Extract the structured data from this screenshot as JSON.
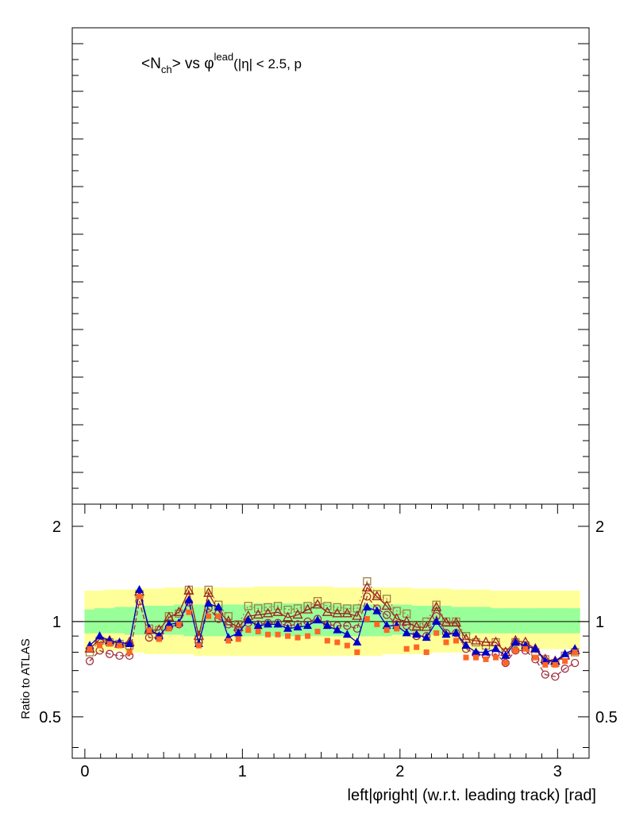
{
  "chart_data": [
    {
      "type": "line",
      "title": "<N_ch> vs φ^lead (|η| < 2.5, p",
      "title_parts": {
        "lt": "<N",
        "sub": "ch",
        "gt": "> vs φ",
        "sup": "lead",
        "rest": "(|η| < 2.5, p"
      },
      "series": []
    },
    {
      "type": "scatter",
      "xlabel": "left|φright| (w.r.t. leading track) [rad]",
      "ylabel": "Ratio to ATLAS",
      "xlim": [
        -0.08,
        3.2
      ],
      "ylim": [
        0.37,
        2.35
      ],
      "x_ticks": [
        "0",
        "1",
        "2",
        "3"
      ],
      "y_ticks": [
        "0.5",
        "1",
        "2"
      ],
      "y_ticks_right": [
        "0.5",
        "1",
        "2"
      ],
      "reference_line": 1,
      "x": [
        0.031,
        0.094,
        0.157,
        0.22,
        0.283,
        0.346,
        0.408,
        0.471,
        0.534,
        0.597,
        0.66,
        0.723,
        0.785,
        0.848,
        0.911,
        0.974,
        1.037,
        1.1,
        1.162,
        1.225,
        1.288,
        1.351,
        1.414,
        1.477,
        1.539,
        1.602,
        1.665,
        1.728,
        1.791,
        1.854,
        1.916,
        1.979,
        2.042,
        2.105,
        2.168,
        2.231,
        2.293,
        2.356,
        2.419,
        2.482,
        2.545,
        2.608,
        2.67,
        2.733,
        2.796,
        2.859,
        2.922,
        2.985,
        3.047,
        3.11
      ],
      "bands": {
        "outer_upper": [
          1.25,
          1.25,
          1.26,
          1.26,
          1.26,
          1.27,
          1.27,
          1.27,
          1.28,
          1.28,
          1.28,
          1.28,
          1.28,
          1.28,
          1.28,
          1.28,
          1.28,
          1.29,
          1.29,
          1.29,
          1.29,
          1.29,
          1.29,
          1.29,
          1.29,
          1.28,
          1.28,
          1.28,
          1.28,
          1.28,
          1.28,
          1.28,
          1.28,
          1.27,
          1.27,
          1.27,
          1.27,
          1.26,
          1.26,
          1.26,
          1.26,
          1.25,
          1.25,
          1.25,
          1.25,
          1.25,
          1.25,
          1.25,
          1.25,
          1.25
        ],
        "outer_lower": [
          0.8,
          0.8,
          0.81,
          0.81,
          0.8,
          0.8,
          0.79,
          0.79,
          0.79,
          0.79,
          0.79,
          0.78,
          0.78,
          0.78,
          0.78,
          0.78,
          0.78,
          0.78,
          0.78,
          0.78,
          0.78,
          0.78,
          0.78,
          0.78,
          0.78,
          0.78,
          0.78,
          0.78,
          0.78,
          0.78,
          0.79,
          0.79,
          0.79,
          0.79,
          0.79,
          0.8,
          0.8,
          0.8,
          0.8,
          0.81,
          0.81,
          0.81,
          0.81,
          0.81,
          0.82,
          0.82,
          0.82,
          0.82,
          0.82,
          0.82
        ],
        "inner_upper": [
          1.09,
          1.1,
          1.1,
          1.11,
          1.11,
          1.11,
          1.12,
          1.12,
          1.12,
          1.13,
          1.13,
          1.13,
          1.13,
          1.13,
          1.13,
          1.13,
          1.13,
          1.14,
          1.14,
          1.14,
          1.14,
          1.14,
          1.14,
          1.14,
          1.14,
          1.13,
          1.13,
          1.13,
          1.13,
          1.13,
          1.13,
          1.13,
          1.13,
          1.12,
          1.12,
          1.12,
          1.12,
          1.11,
          1.11,
          1.11,
          1.11,
          1.1,
          1.1,
          1.1,
          1.1,
          1.1,
          1.1,
          1.1,
          1.1,
          1.1
        ],
        "inner_lower": [
          0.92,
          0.92,
          0.92,
          0.92,
          0.91,
          0.91,
          0.91,
          0.91,
          0.91,
          0.91,
          0.9,
          0.9,
          0.9,
          0.9,
          0.9,
          0.9,
          0.9,
          0.9,
          0.9,
          0.9,
          0.9,
          0.9,
          0.9,
          0.9,
          0.9,
          0.9,
          0.9,
          0.9,
          0.9,
          0.9,
          0.9,
          0.91,
          0.91,
          0.91,
          0.91,
          0.91,
          0.91,
          0.91,
          0.91,
          0.92,
          0.92,
          0.92,
          0.92,
          0.92,
          0.92,
          0.92,
          0.92,
          0.92,
          0.92,
          0.92
        ]
      },
      "band_colors": {
        "outer": "#ffff99",
        "inner": "#99ff99"
      },
      "series": [
        {
          "marker": "open-square",
          "color": "#a08040",
          "line": "dotted",
          "values": [
            0.8,
            0.87,
            0.86,
            0.85,
            0.84,
            1.22,
            0.95,
            0.94,
            1.04,
            1.06,
            1.26,
            0.88,
            1.26,
            1.13,
            1.04,
            0.98,
            1.12,
            1.1,
            1.11,
            1.12,
            1.09,
            1.1,
            1.12,
            1.16,
            1.12,
            1.11,
            1.1,
            1.1,
            1.34,
            1.22,
            1.18,
            1.08,
            1.06,
            0.97,
            1.0,
            1.13,
            1.0,
            1.0,
            0.9,
            0.86,
            0.84,
            0.86,
            0.8,
            0.86,
            0.84,
            0.8,
            0.76,
            0.74,
            0.78,
            0.8
          ]
        },
        {
          "marker": "open-triangle",
          "color": "#a02020",
          "line": "solid",
          "values": [
            0.82,
            0.88,
            0.87,
            0.85,
            0.86,
            1.24,
            0.94,
            0.94,
            1.03,
            1.07,
            1.25,
            0.9,
            1.23,
            1.08,
            1.0,
            0.96,
            1.04,
            1.05,
            1.06,
            1.07,
            1.03,
            1.05,
            1.09,
            1.13,
            1.07,
            1.06,
            1.06,
            1.04,
            1.28,
            1.2,
            1.12,
            1.02,
            1.0,
            0.96,
            0.96,
            1.11,
            0.99,
            0.99,
            0.88,
            0.87,
            0.86,
            0.86,
            0.8,
            0.87,
            0.86,
            0.82,
            0.76,
            0.75,
            0.78,
            0.81
          ]
        },
        {
          "marker": "open-circle",
          "color": "#a03040",
          "line": "dashed",
          "values": [
            0.75,
            0.81,
            0.79,
            0.78,
            0.78,
            1.16,
            0.89,
            0.89,
            0.96,
            0.98,
            1.15,
            0.86,
            1.1,
            1.02,
            0.98,
            0.94,
            0.99,
            0.98,
            0.99,
            0.99,
            0.97,
            0.98,
            1.0,
            1.02,
            0.98,
            0.97,
            0.97,
            0.95,
            1.2,
            1.1,
            1.05,
            0.98,
            0.97,
            0.9,
            0.9,
            1.04,
            0.92,
            0.92,
            0.82,
            0.79,
            0.78,
            0.79,
            0.74,
            0.81,
            0.81,
            0.76,
            0.68,
            0.67,
            0.71,
            0.74
          ]
        },
        {
          "marker": "filled-triangle",
          "color": "#0000cc",
          "line": "solid",
          "values": [
            0.84,
            0.9,
            0.87,
            0.86,
            0.85,
            1.26,
            0.95,
            0.9,
            0.98,
            0.99,
            1.17,
            0.85,
            1.14,
            1.11,
            0.89,
            0.92,
            1.01,
            0.97,
            0.98,
            0.98,
            0.95,
            0.96,
            0.97,
            1.01,
            0.97,
            0.94,
            0.91,
            0.86,
            1.11,
            1.08,
            0.97,
            0.97,
            0.92,
            0.91,
            0.89,
            1.0,
            0.91,
            0.92,
            0.84,
            0.8,
            0.8,
            0.82,
            0.78,
            0.86,
            0.84,
            0.82,
            0.75,
            0.75,
            0.79,
            0.82
          ]
        },
        {
          "marker": "filled-square",
          "color": "#ff6622",
          "line": "none",
          "values": [
            0.82,
            0.84,
            0.85,
            0.84,
            0.8,
            1.2,
            0.94,
            0.88,
            0.95,
            0.98,
            1.07,
            0.84,
            1.04,
            1.04,
            0.87,
            0.88,
            0.94,
            0.93,
            0.91,
            0.91,
            0.9,
            0.89,
            0.9,
            0.93,
            0.87,
            0.86,
            0.84,
            0.8,
            1.02,
            0.98,
            0.94,
            0.95,
            0.82,
            0.83,
            0.8,
            0.92,
            0.86,
            0.87,
            0.77,
            0.77,
            0.76,
            0.77,
            0.74,
            0.81,
            0.82,
            0.77,
            0.73,
            0.73,
            0.75,
            0.8
          ]
        }
      ]
    }
  ]
}
